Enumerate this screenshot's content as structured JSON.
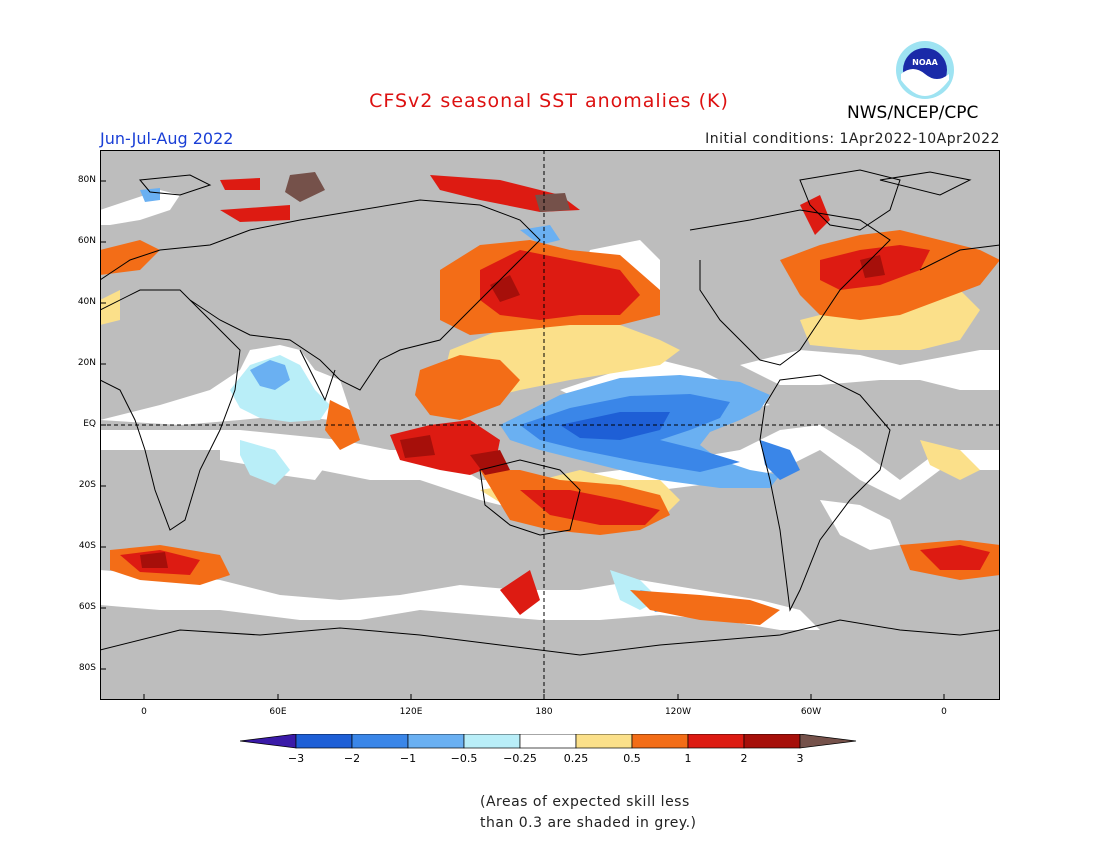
{
  "header": {
    "title": "CFSv2 seasonal SST anomalies (K)",
    "agency": "NWS/NCEP/CPC",
    "logo_text": "NOAA",
    "season": "Jun-Jul-Aug 2022",
    "initial_conditions": "Initial conditions: 1Apr2022-10Apr2022"
  },
  "map": {
    "projection": "cylindrical equidistant, centered on 180",
    "lat_labels": [
      "80N",
      "60N",
      "40N",
      "20N",
      "EQ",
      "20S",
      "40S",
      "60S",
      "80S"
    ],
    "lon_labels": [
      "0",
      "60E",
      "120E",
      "180",
      "120W",
      "60W",
      "0"
    ],
    "reference_lines": [
      "Equator",
      "180"
    ],
    "land_color": "#bdbdbd",
    "regions": [
      {
        "region": "Central-eastern equatorial Pacific",
        "anomaly": "-0.5 to -1 (cold)"
      },
      {
        "region": "North Pacific ~40N",
        "anomaly": "+1 to +2 (warm)"
      },
      {
        "region": "Western Pacific / Maritime Continent",
        "anomaly": "+1 to +2 (warm)"
      },
      {
        "region": "South-central Pacific ~30S",
        "anomaly": "+0.5 to +2 (warm)"
      },
      {
        "region": "North Atlantic",
        "anomaly": "+0.5 to +2 (warm)"
      },
      {
        "region": "Indian Ocean west of equator",
        "anomaly": "-0.25 to -0.5 (cool)"
      }
    ]
  },
  "colorbar": {
    "tick_labels": [
      "−3",
      "−2",
      "−1",
      "−0.5",
      "−0.25",
      "0.25",
      "0.5",
      "1",
      "2",
      "3"
    ],
    "colors": [
      "#3a1aa8",
      "#1e5fd6",
      "#3a86e8",
      "#6ab0f2",
      "#b9eef8",
      "#ffffff",
      "#fbe08a",
      "#f36d17",
      "#dd1b12",
      "#a60f0a",
      "#75514a"
    ]
  },
  "note": {
    "line1": "(Areas of expected skill less",
    "line2": "than 0.3 are shaded in grey.)"
  }
}
